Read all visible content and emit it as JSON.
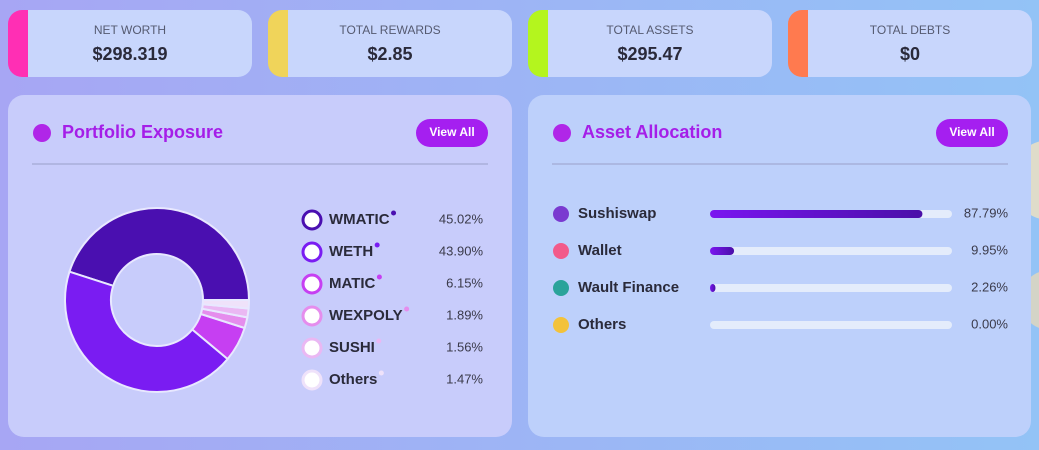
{
  "cards": [
    {
      "label": "NET WORTH",
      "value": "$298.319",
      "color": "#ff2fb4"
    },
    {
      "label": "TOTAL REWARDS",
      "value": "$2.85",
      "color": "#f0d45a"
    },
    {
      "label": "TOTAL ASSETS",
      "value": "$295.47",
      "color": "#b4f51e"
    },
    {
      "label": "TOTAL DEBTS",
      "value": "$0",
      "color": "#ff7a4f"
    }
  ],
  "portfolio": {
    "type": "donut",
    "title": "Portfolio Exposure",
    "action": "View All",
    "categories": [
      "WMATIC",
      "WETH",
      "MATIC",
      "WEXPOLY",
      "SUSHI",
      "Others"
    ],
    "values": [
      45.02,
      43.9,
      6.15,
      1.89,
      1.56,
      1.47
    ],
    "value_labels": [
      "45.02%",
      "43.90%",
      "6.15%",
      "1.89%",
      "1.56%",
      "1.47%"
    ],
    "colors": [
      "#4a0fb0",
      "#7a1cf2",
      "#c63ff2",
      "#e58ded",
      "#eab8f3",
      "#efe2fa"
    ]
  },
  "allocation": {
    "type": "progress",
    "title": "Asset Allocation",
    "action": "View All",
    "categories": [
      "Sushiswap",
      "Wallet",
      "Wault Finance",
      "Others"
    ],
    "values": [
      87.79,
      9.95,
      2.26,
      0
    ],
    "value_labels": [
      "87.79%",
      "9.95%",
      "2.26%",
      "0.00%"
    ],
    "xlim": [
      0,
      100
    ],
    "color": "#6a12e0"
  }
}
